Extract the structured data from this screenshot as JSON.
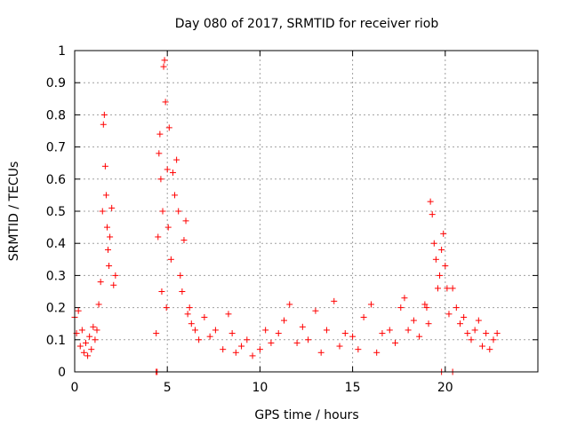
{
  "chart_data": {
    "type": "scatter",
    "title": "Day 080 of 2017, SRMTID for receiver riob",
    "xlabel": "GPS time / hours",
    "ylabel": "SRMTID / TECUs",
    "xlim": [
      0,
      25
    ],
    "ylim": [
      0,
      1
    ],
    "x_ticks": [
      0,
      5,
      10,
      15,
      20
    ],
    "x_tick_labels": [
      "0",
      "5",
      "10",
      "15",
      "20"
    ],
    "y_ticks": [
      0,
      0.1,
      0.2,
      0.3,
      0.4,
      0.5,
      0.6,
      0.7,
      0.8,
      0.9,
      1
    ],
    "y_tick_labels": [
      "0",
      "0.1",
      "0.2",
      "0.3",
      "0.4",
      "0.5",
      "0.6",
      "0.7",
      "0.8",
      "0.9",
      "1"
    ],
    "grid": true,
    "marker": "+",
    "color": "#ff0000",
    "series": [
      {
        "name": "SRMTID",
        "x": [
          0.0,
          0.1,
          0.2,
          0.3,
          0.4,
          0.5,
          0.6,
          0.7,
          0.8,
          0.9,
          1.0,
          1.1,
          1.2,
          1.3,
          1.4,
          1.5,
          1.55,
          1.6,
          1.65,
          1.7,
          1.75,
          1.8,
          1.85,
          1.9,
          2.0,
          2.1,
          2.2,
          4.4,
          4.5,
          4.55,
          4.6,
          4.65,
          4.7,
          4.75,
          4.8,
          4.85,
          4.9,
          4.95,
          5.0,
          5.05,
          5.1,
          5.2,
          5.3,
          5.4,
          5.5,
          5.6,
          5.7,
          5.8,
          5.9,
          6.0,
          6.1,
          6.2,
          6.3,
          6.5,
          6.7,
          7.0,
          7.3,
          7.6,
          8.0,
          8.3,
          8.5,
          8.7,
          9.0,
          9.3,
          9.6,
          10.0,
          10.3,
          10.6,
          11.0,
          11.3,
          11.6,
          12.0,
          12.3,
          12.6,
          13.0,
          13.3,
          13.6,
          14.0,
          14.3,
          14.6,
          15.0,
          15.3,
          15.6,
          16.0,
          16.3,
          16.6,
          17.0,
          17.3,
          17.6,
          17.8,
          18.0,
          18.3,
          18.6,
          18.9,
          19.0,
          19.1,
          19.2,
          19.3,
          19.4,
          19.5,
          19.6,
          19.7,
          19.8,
          19.9,
          20.0,
          20.1,
          20.2,
          20.4,
          20.6,
          20.8,
          21.0,
          21.2,
          21.4,
          21.6,
          21.8,
          22.0,
          22.2,
          22.4,
          22.6,
          22.8
        ],
        "y": [
          0.17,
          0.12,
          0.19,
          0.08,
          0.13,
          0.06,
          0.09,
          0.05,
          0.11,
          0.07,
          0.14,
          0.1,
          0.13,
          0.21,
          0.28,
          0.5,
          0.77,
          0.8,
          0.64,
          0.55,
          0.45,
          0.38,
          0.33,
          0.42,
          0.51,
          0.27,
          0.3,
          0.12,
          0.42,
          0.68,
          0.74,
          0.6,
          0.25,
          0.5,
          0.95,
          0.97,
          0.84,
          0.2,
          0.63,
          0.45,
          0.76,
          0.35,
          0.62,
          0.55,
          0.66,
          0.5,
          0.3,
          0.25,
          0.41,
          0.47,
          0.18,
          0.2,
          0.15,
          0.13,
          0.1,
          0.17,
          0.11,
          0.13,
          0.07,
          0.18,
          0.12,
          0.06,
          0.08,
          0.1,
          0.05,
          0.07,
          0.13,
          0.09,
          0.12,
          0.16,
          0.21,
          0.09,
          0.14,
          0.1,
          0.19,
          0.06,
          0.13,
          0.22,
          0.08,
          0.12,
          0.11,
          0.07,
          0.17,
          0.21,
          0.06,
          0.12,
          0.13,
          0.09,
          0.2,
          0.23,
          0.13,
          0.16,
          0.11,
          0.21,
          0.2,
          0.15,
          0.53,
          0.49,
          0.4,
          0.35,
          0.26,
          0.3,
          0.38,
          0.43,
          0.33,
          0.26,
          0.18,
          0.26,
          0.2,
          0.15,
          0.17,
          0.12,
          0.1,
          0.13,
          0.16,
          0.08,
          0.12,
          0.07,
          0.1,
          0.12
        ]
      }
    ],
    "markers_on_axis": [
      4.4,
      4.45,
      19.8,
      20.4
    ]
  }
}
